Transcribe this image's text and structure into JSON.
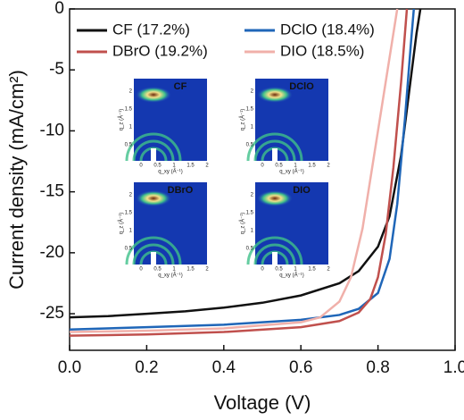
{
  "chart_data": {
    "type": "line",
    "xlabel": "Voltage (V)",
    "ylabel": "Current density (mA/cm²)",
    "xlim": [
      0,
      1
    ],
    "ylim": [
      -28,
      0
    ],
    "xticks": [
      {
        "value": 0,
        "label": "0.0"
      },
      0.2,
      0.4,
      0.6,
      0.8,
      {
        "value": 1,
        "label": "1.0"
      }
    ],
    "yticks": [
      0,
      -5,
      -10,
      -15,
      -20,
      -25
    ],
    "legend": "top",
    "series": [
      {
        "name": "CF (17.2%)",
        "color": "#111111",
        "x": [
          0,
          0.1,
          0.2,
          0.3,
          0.4,
          0.5,
          0.6,
          0.7,
          0.75,
          0.8,
          0.83,
          0.86,
          0.88,
          0.9,
          0.91
        ],
        "values": [
          -25.3,
          -25.2,
          -25.0,
          -24.8,
          -24.5,
          -24.1,
          -23.5,
          -22.5,
          -21.5,
          -19.5,
          -17,
          -12,
          -7,
          -2,
          0
        ]
      },
      {
        "name": "DClO  (18.4%)",
        "color": "#1f66b8",
        "x": [
          0,
          0.2,
          0.4,
          0.6,
          0.7,
          0.75,
          0.8,
          0.83,
          0.85,
          0.87,
          0.885,
          0.893
        ],
        "values": [
          -26.3,
          -26.1,
          -25.9,
          -25.5,
          -25.1,
          -24.6,
          -23.3,
          -20.5,
          -16,
          -9,
          -3,
          0
        ]
      },
      {
        "name": "DBrO (19.2%)",
        "color": "#c0504d",
        "x": [
          0,
          0.2,
          0.4,
          0.6,
          0.7,
          0.75,
          0.78,
          0.8,
          0.82,
          0.84,
          0.86,
          0.875
        ],
        "values": [
          -26.8,
          -26.7,
          -26.5,
          -26.1,
          -25.6,
          -24.9,
          -23.8,
          -22,
          -18.5,
          -13,
          -6,
          0
        ]
      },
      {
        "name": "DIO (18.5%)",
        "color": "#f0b0aa",
        "x": [
          0,
          0.2,
          0.4,
          0.6,
          0.65,
          0.7,
          0.73,
          0.76,
          0.79,
          0.82,
          0.85
        ],
        "values": [
          -26.5,
          -26.4,
          -26.2,
          -25.7,
          -25.3,
          -24,
          -22,
          -18,
          -12,
          -6,
          0
        ]
      }
    ],
    "insets": [
      {
        "label": "CF"
      },
      {
        "label": "DClO"
      },
      {
        "label": "DBrO"
      },
      {
        "label": "DIO"
      }
    ],
    "inset_xlabel": "q_xy (Å⁻¹)",
    "inset_ylabel": "q_z (Å⁻¹)",
    "inset_xticks": [
      "0",
      "0.5",
      "1",
      "1.5",
      "2"
    ],
    "inset_yticks": [
      "0.5",
      "1",
      "1.5",
      "2"
    ]
  }
}
